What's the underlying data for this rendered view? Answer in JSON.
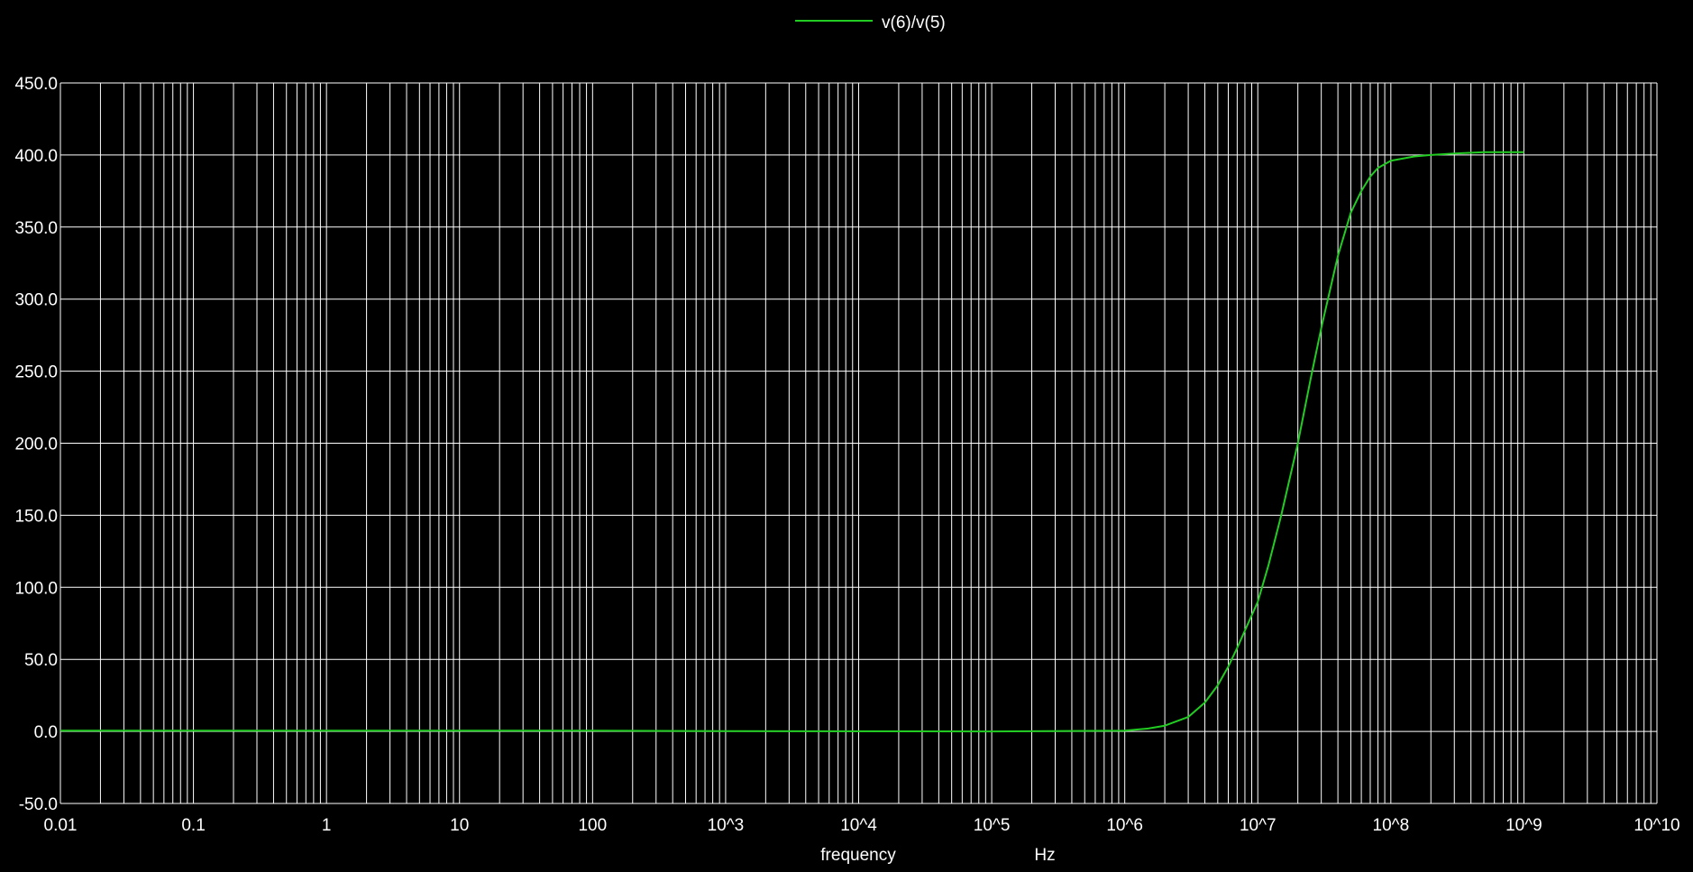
{
  "chart_data": {
    "type": "line",
    "x_scale": "log",
    "xlim": [
      0.01,
      10000000000
    ],
    "ylim": [
      -50,
      450
    ],
    "grid": true,
    "legend_placement": "top-center",
    "xlabel": "frequency",
    "xunit": "Hz",
    "x_tick_labels": [
      "0.01",
      "0.1",
      "1",
      "10",
      "100",
      "10^3",
      "10^4",
      "10^5",
      "10^6",
      "10^7",
      "10^8",
      "10^9",
      "10^10"
    ],
    "y_tick_labels": [
      "450.0",
      "400.0",
      "350.0",
      "300.0",
      "250.0",
      "200.0",
      "150.0",
      "100.0",
      "50.0",
      "0.0",
      "-50.0"
    ],
    "colors": {
      "background": "#000000",
      "grid": "#ffffff",
      "text": "#ffffff"
    },
    "series": [
      {
        "name": "v(6)/v(5)",
        "color": "#22cc22",
        "points": [
          [
            0.01,
            0.5
          ],
          [
            100,
            0.5
          ],
          [
            1000,
            0.2
          ],
          [
            100000,
            0.0
          ],
          [
            1000000,
            0.5
          ],
          [
            1500000,
            2
          ],
          [
            2000000,
            4
          ],
          [
            3000000,
            10
          ],
          [
            4000000,
            20
          ],
          [
            5000000,
            32
          ],
          [
            6000000,
            45
          ],
          [
            7000000,
            58
          ],
          [
            8000000,
            70
          ],
          [
            10000000,
            90
          ],
          [
            12000000,
            115
          ],
          [
            15000000,
            150
          ],
          [
            20000000,
            200
          ],
          [
            25000000,
            245
          ],
          [
            30000000,
            280
          ],
          [
            40000000,
            330
          ],
          [
            50000000,
            360
          ],
          [
            60000000,
            375
          ],
          [
            70000000,
            385
          ],
          [
            80000000,
            391
          ],
          [
            100000000,
            396
          ],
          [
            150000000,
            399
          ],
          [
            200000000,
            400
          ],
          [
            300000000,
            401
          ],
          [
            500000000,
            402
          ],
          [
            1000000000,
            402
          ]
        ]
      }
    ]
  }
}
